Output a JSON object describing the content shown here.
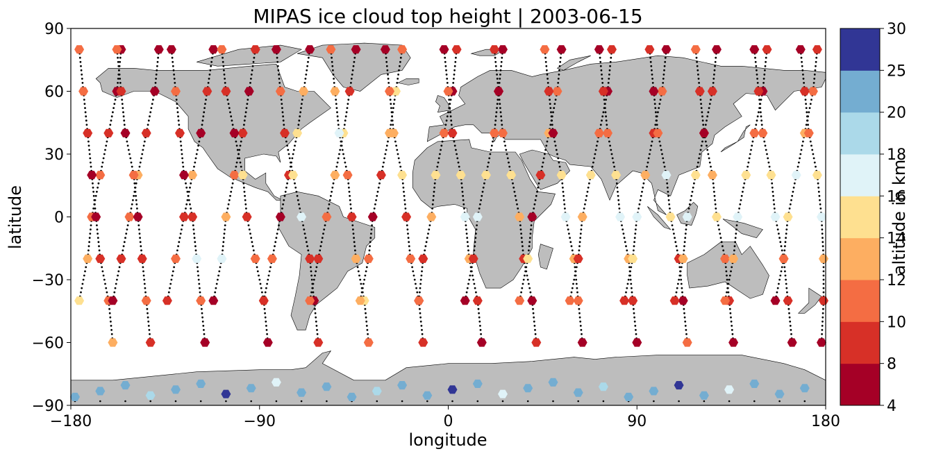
{
  "chart_data": {
    "type": "scatter",
    "title": "MIPAS ice cloud top height | 2003-06-15",
    "xlabel": "longitude",
    "ylabel": "latitude",
    "xlim": [
      -180,
      180
    ],
    "ylim": [
      -90,
      90
    ],
    "xticks": [
      -180,
      -90,
      0,
      90,
      180
    ],
    "yticks": [
      -90,
      -60,
      -30,
      0,
      30,
      60,
      90
    ],
    "xtick_labels": [
      "−180",
      "−90",
      "0",
      "90",
      "180"
    ],
    "ytick_labels": [
      "−90",
      "−60",
      "−30",
      "0",
      "30",
      "60",
      "90"
    ],
    "grid": false,
    "background_map": "world coastlines, land shaded grey",
    "colors": {
      "land": "#bdbdbd",
      "coast": "#000000",
      "track_dots": "#000000"
    },
    "colorbar": {
      "label": "altitude in km",
      "ticks": [
        4,
        8,
        10,
        12,
        14,
        16,
        18,
        20,
        25,
        30
      ],
      "tick_labels": [
        "4",
        "8",
        "10",
        "12",
        "14",
        "16",
        "18",
        "20",
        "25",
        "30"
      ],
      "bins": [
        {
          "from": 4,
          "to": 8,
          "color": "#a50026"
        },
        {
          "from": 8,
          "to": 10,
          "color": "#d73027"
        },
        {
          "from": 10,
          "to": 12,
          "color": "#f46d43"
        },
        {
          "from": 12,
          "to": 14,
          "color": "#fdae61"
        },
        {
          "from": 14,
          "to": 16,
          "color": "#fee090"
        },
        {
          "from": 16,
          "to": 18,
          "color": "#e0f3f8"
        },
        {
          "from": 18,
          "to": 20,
          "color": "#abd9e9"
        },
        {
          "from": 20,
          "to": 25,
          "color": "#74add1"
        },
        {
          "from": 25,
          "to": 30,
          "color": "#313695"
        }
      ]
    },
    "orbit_tracks": [
      {
        "descending": true,
        "lons": [
          -156,
          -158,
          -162,
          -166,
          -170,
          -172,
          -176
        ],
        "alts": [
          7,
          7,
          9,
          11,
          11,
          13,
          15
        ]
      },
      {
        "descending": false,
        "lons": [
          -176,
          -174,
          -172,
          -170,
          -168,
          -166,
          -162,
          -160
        ],
        "alts": [
          11,
          11,
          9,
          7,
          7,
          9,
          11,
          13
        ]
      },
      {
        "descending": true,
        "lons": [
          -138,
          -140,
          -144,
          -148,
          -152,
          -156,
          -160
        ],
        "alts": [
          7,
          7,
          9,
          13,
          11,
          9,
          7
        ]
      },
      {
        "descending": false,
        "lons": [
          -158,
          -156,
          -154,
          -150,
          -148,
          -146,
          -144,
          -142
        ],
        "alts": [
          11,
          9,
          7,
          11,
          7,
          9,
          11,
          9
        ]
      },
      {
        "descending": true,
        "lons": [
          -112,
          -115,
          -118,
          -122,
          -126,
          -130,
          -134
        ],
        "alts": [
          7,
          9,
          7,
          13,
          9,
          11,
          9
        ]
      },
      {
        "descending": false,
        "lons": [
          -132,
          -130,
          -128,
          -126,
          -122,
          -120,
          -118,
          -116
        ],
        "alts": [
          7,
          11,
          9,
          7,
          9,
          17,
          11,
          7
        ]
      },
      {
        "descending": true,
        "lons": [
          -92,
          -95,
          -98,
          -102,
          -106,
          -108,
          -112
        ],
        "alts": [
          9,
          7,
          9,
          11,
          13,
          17,
          7
        ]
      },
      {
        "descending": false,
        "lons": [
          -108,
          -106,
          -102,
          -98,
          -96,
          -92,
          -88,
          -86
        ],
        "alts": [
          11,
          9,
          7,
          15,
          9,
          11,
          13,
          7
        ]
      },
      {
        "descending": true,
        "lons": [
          -66,
          -69,
          -72,
          -76,
          -80,
          -84,
          -88
        ],
        "alts": [
          7,
          13,
          15,
          9,
          7,
          11,
          9
        ]
      },
      {
        "descending": false,
        "lons": [
          -82,
          -80,
          -78,
          -74,
          -70,
          -66,
          -64,
          -62
        ],
        "alts": [
          7,
          11,
          9,
          15,
          17,
          9,
          7,
          9
        ]
      },
      {
        "descending": true,
        "lons": [
          -44,
          -47,
          -50,
          -54,
          -58,
          -62,
          -66
        ],
        "alts": [
          7,
          9,
          15,
          13,
          11,
          9,
          11
        ]
      },
      {
        "descending": false,
        "lons": [
          -56,
          -54,
          -52,
          -48,
          -46,
          -44,
          -40,
          -38
        ],
        "alts": [
          11,
          13,
          17,
          11,
          9,
          13,
          15,
          11
        ]
      },
      {
        "descending": true,
        "lons": [
          -22,
          -25,
          -28,
          -32,
          -36,
          -38,
          -42
        ],
        "alts": [
          11,
          15,
          13,
          9,
          7,
          11,
          13
        ]
      },
      {
        "descending": false,
        "lons": [
          -30,
          -28,
          -26,
          -22,
          -20,
          -18,
          -14,
          -12
        ],
        "alts": [
          7,
          11,
          13,
          15,
          9,
          11,
          7,
          9
        ]
      },
      {
        "descending": true,
        "lons": [
          4,
          2,
          -2,
          -6,
          -8,
          -12,
          -14
        ],
        "alts": [
          9,
          7,
          11,
          15,
          13,
          9,
          11
        ]
      },
      {
        "descending": false,
        "lons": [
          -2,
          0,
          2,
          6,
          8,
          10,
          14,
          16
        ],
        "alts": [
          7,
          11,
          9,
          15,
          17,
          13,
          9,
          7
        ]
      },
      {
        "descending": true,
        "lons": [
          26,
          24,
          22,
          18,
          14,
          12,
          8
        ],
        "alts": [
          7,
          9,
          11,
          15,
          17,
          9,
          7
        ]
      },
      {
        "descending": false,
        "lons": [
          22,
          24,
          26,
          30,
          34,
          36,
          40,
          42
        ],
        "alts": [
          9,
          7,
          11,
          15,
          13,
          9,
          7,
          9
        ]
      },
      {
        "descending": true,
        "lons": [
          54,
          52,
          48,
          44,
          40,
          38,
          34
        ],
        "alts": [
          7,
          11,
          13,
          9,
          7,
          15,
          11
        ]
      },
      {
        "descending": false,
        "lons": [
          46,
          48,
          50,
          54,
          56,
          60,
          62,
          64
        ],
        "alts": [
          11,
          9,
          7,
          15,
          17,
          13,
          11,
          7
        ]
      },
      {
        "descending": true,
        "lons": [
          78,
          76,
          72,
          68,
          64,
          62,
          58
        ],
        "alts": [
          9,
          7,
          11,
          15,
          13,
          9,
          11
        ]
      },
      {
        "descending": false,
        "lons": [
          72,
          74,
          76,
          80,
          82,
          86,
          88,
          90
        ],
        "alts": [
          7,
          9,
          11,
          15,
          17,
          13,
          9,
          7
        ]
      },
      {
        "descending": true,
        "lons": [
          104,
          102,
          98,
          94,
          90,
          88,
          84
        ],
        "alts": [
          7,
          11,
          9,
          13,
          17,
          15,
          9
        ]
      },
      {
        "descending": false,
        "lons": [
          96,
          98,
          100,
          104,
          106,
          110,
          112,
          114
        ],
        "alts": [
          9,
          7,
          11,
          17,
          15,
          9,
          7,
          11
        ]
      },
      {
        "descending": true,
        "lons": [
          128,
          126,
          122,
          118,
          114,
          112,
          108
        ],
        "alts": [
          7,
          9,
          11,
          15,
          17,
          13,
          9
        ]
      },
      {
        "descending": false,
        "lons": [
          118,
          120,
          122,
          126,
          128,
          132,
          134,
          136
        ],
        "alts": [
          11,
          9,
          7,
          13,
          15,
          11,
          9,
          7
        ]
      },
      {
        "descending": true,
        "lons": [
          152,
          150,
          146,
          142,
          138,
          136,
          132
        ],
        "alts": [
          9,
          7,
          11,
          15,
          17,
          13,
          11
        ]
      },
      {
        "descending": false,
        "lons": [
          146,
          148,
          150,
          154,
          156,
          160,
          162,
          164
        ],
        "alts": [
          7,
          9,
          11,
          15,
          17,
          13,
          9,
          7
        ]
      },
      {
        "descending": true,
        "lons": [
          176,
          174,
          170,
          166,
          162,
          160,
          156
        ],
        "alts": [
          9,
          11,
          13,
          17,
          15,
          11,
          7
        ]
      },
      {
        "descending": false,
        "lons": [
          168,
          170,
          172,
          176,
          178,
          179,
          179,
          178
        ],
        "alts": [
          7,
          9,
          11,
          15,
          17,
          13,
          9,
          7
        ]
      }
    ],
    "antarctic_band": {
      "lat_range": [
        -86,
        -72
      ],
      "alts": [
        22,
        22,
        22,
        19,
        22,
        22,
        27,
        22,
        17
      ]
    }
  }
}
